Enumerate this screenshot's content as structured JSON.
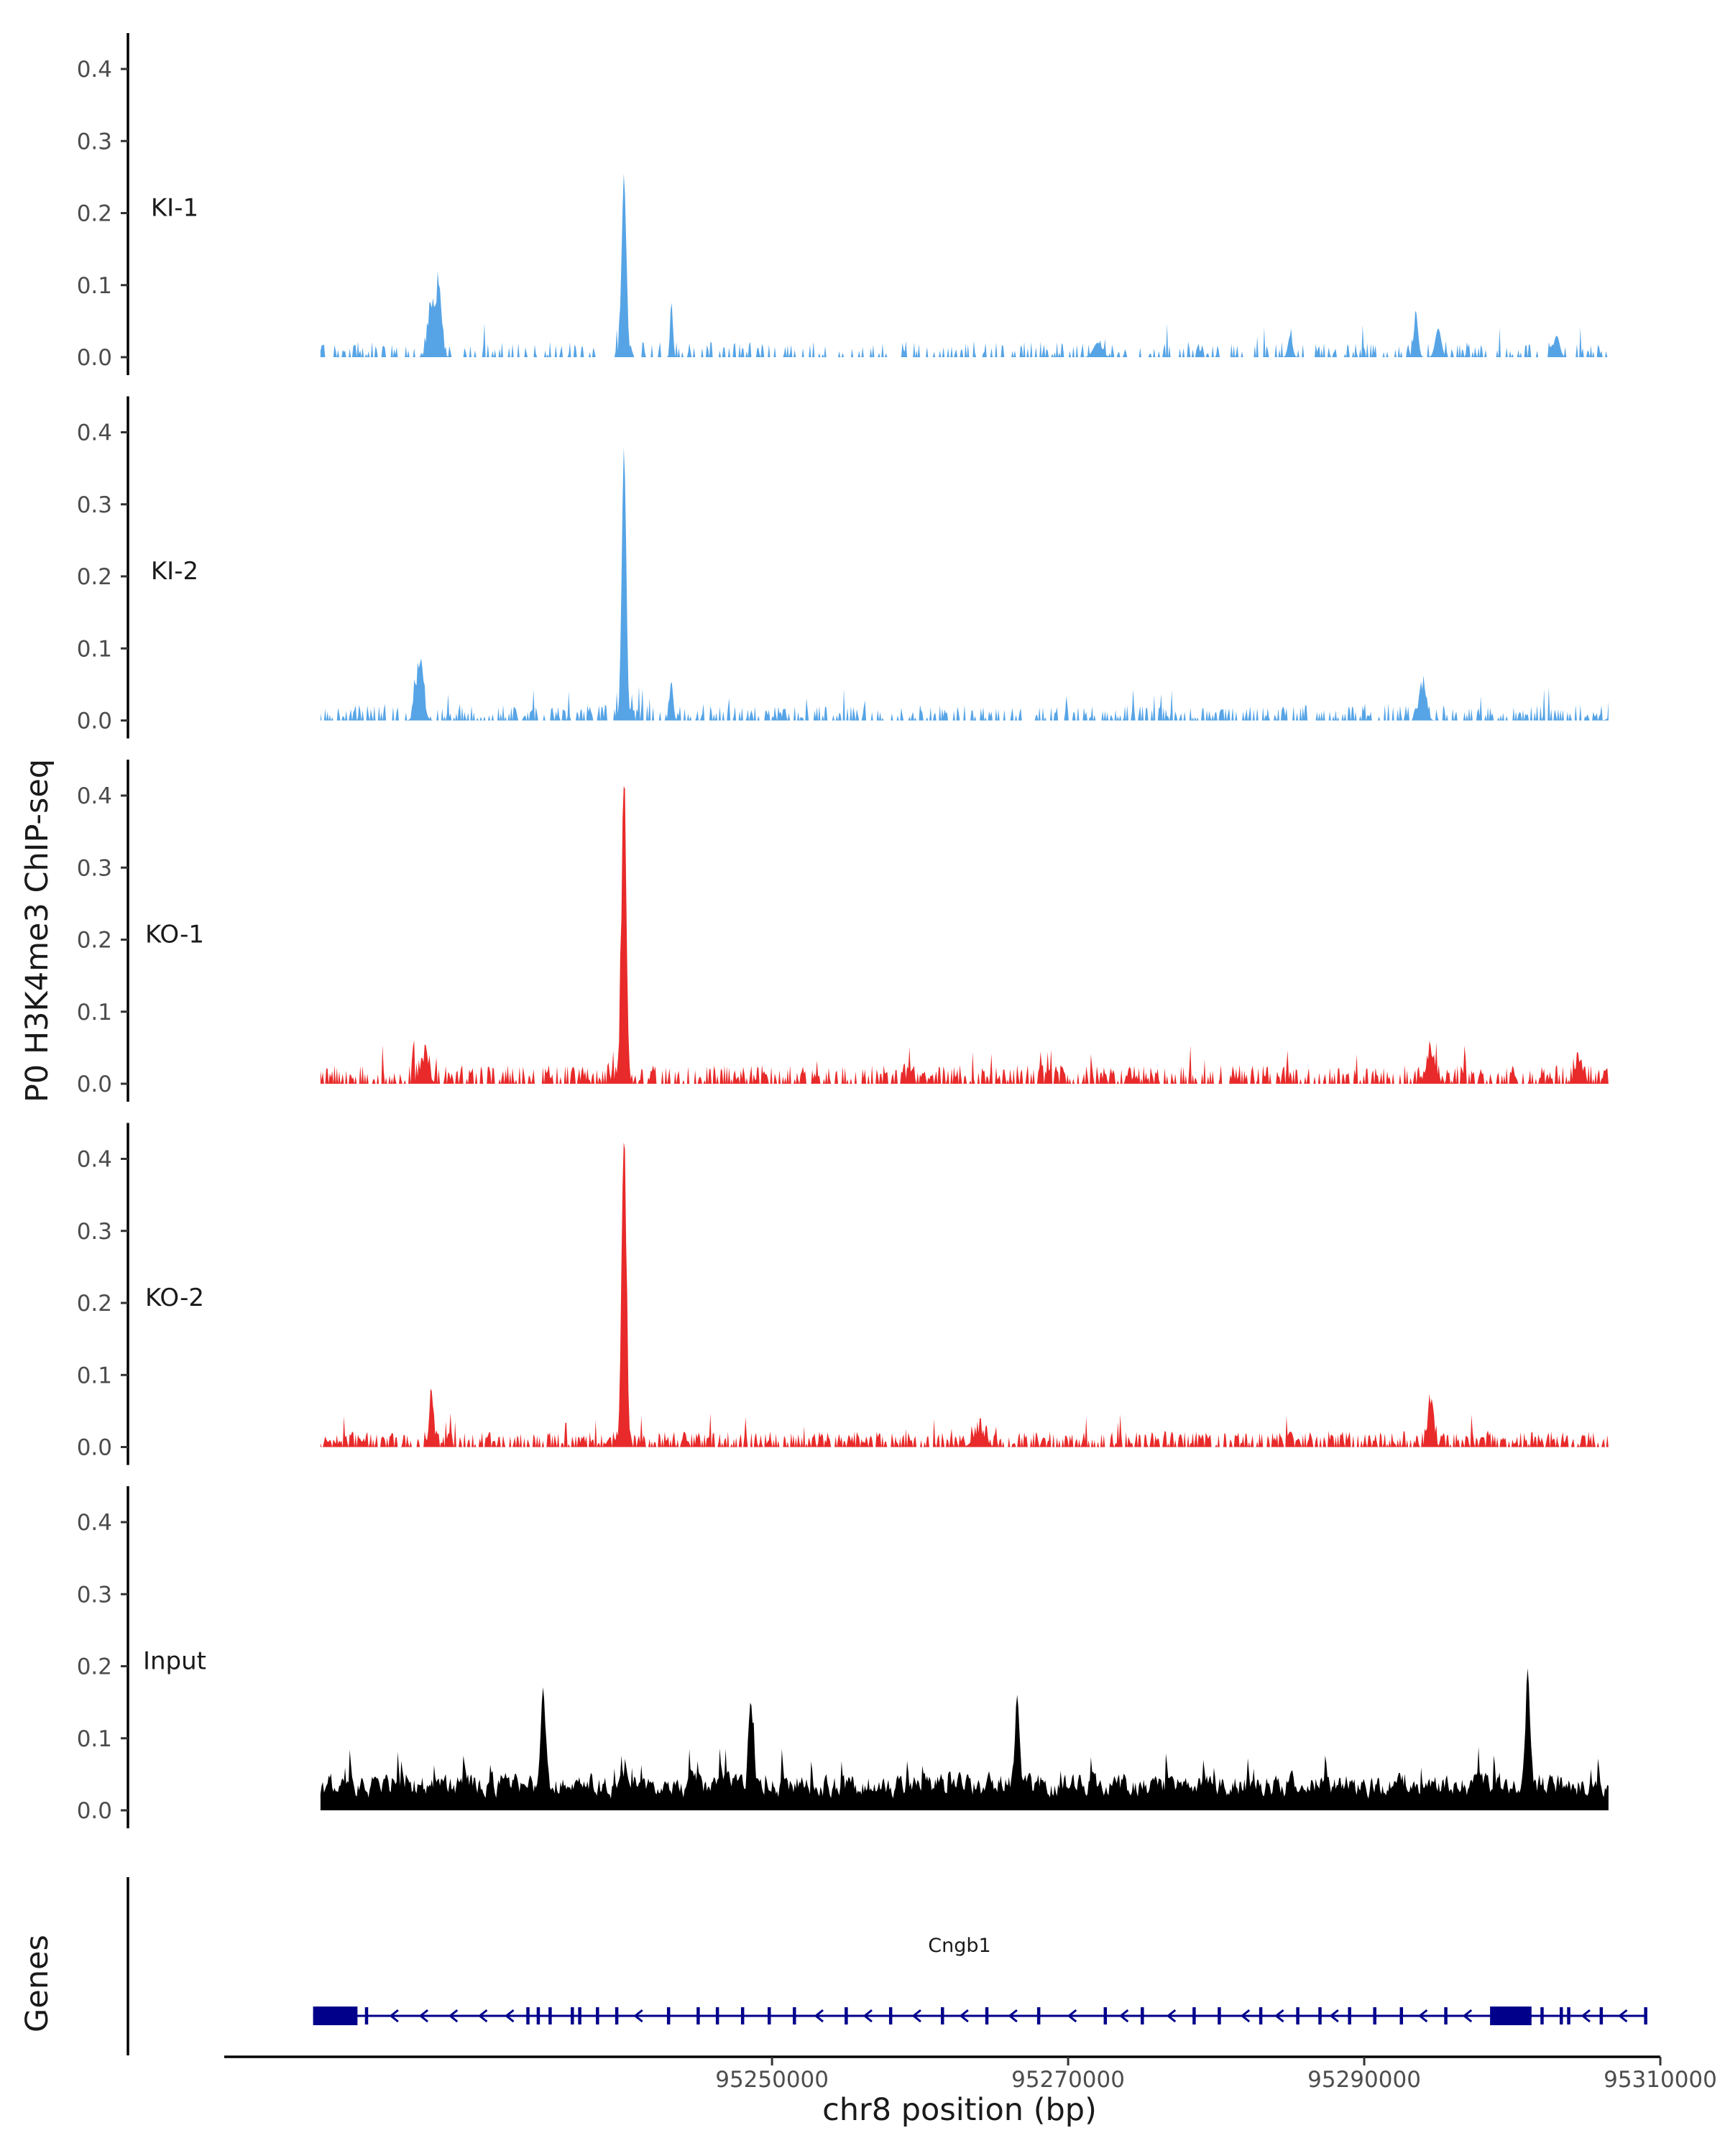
{
  "chart_data": {
    "type": "area",
    "ylabel": "P0 H3K4me3 ChIP-seq",
    "xlabel": "chr8 position (bp)",
    "genes_label": "Genes",
    "xlim": [
      95213000,
      95310000
    ],
    "x_ticks": [
      {
        "value": 95250000,
        "label": "95250000"
      },
      {
        "value": 95270000,
        "label": "95270000"
      },
      {
        "value": 95290000,
        "label": "95290000"
      },
      {
        "value": 95310000,
        "label": "95310000"
      }
    ],
    "ylim": [
      0,
      0.45
    ],
    "y_ticks": [
      {
        "value": 0.0,
        "label": "0.0"
      },
      {
        "value": 0.1,
        "label": "0.1"
      },
      {
        "value": 0.2,
        "label": "0.2"
      },
      {
        "value": 0.3,
        "label": "0.3"
      },
      {
        "value": 0.4,
        "label": "0.4"
      }
    ],
    "tracks": [
      {
        "name": "KI-1",
        "color": "#56a4e6",
        "noise_level": 0.018,
        "density": 0.32,
        "seed": 11,
        "peaks": [
          [
            95227000,
            0.065,
            250
          ],
          [
            95227500,
            0.07,
            200
          ],
          [
            95240000,
            0.245,
            160
          ],
          [
            95243200,
            0.08,
            80
          ],
          [
            95272000,
            0.02,
            300
          ],
          [
            95285000,
            0.03,
            150
          ],
          [
            95293500,
            0.055,
            150
          ],
          [
            95295000,
            0.04,
            200
          ],
          [
            95303000,
            0.03,
            200
          ]
        ]
      },
      {
        "name": "KI-2",
        "color": "#56a4e6",
        "noise_level": 0.018,
        "density": 0.45,
        "seed": 23,
        "peaks": [
          [
            95226200,
            0.07,
            250
          ],
          [
            95240000,
            0.37,
            150
          ],
          [
            95243200,
            0.055,
            120
          ],
          [
            95294000,
            0.045,
            220
          ],
          [
            95307000,
            0.02,
            300
          ]
        ]
      },
      {
        "name": "KO-1",
        "color": "#e82a2a",
        "noise_level": 0.022,
        "density": 0.55,
        "seed": 37,
        "peaks": [
          [
            95226500,
            0.03,
            300
          ],
          [
            95240000,
            0.415,
            160
          ],
          [
            95294500,
            0.04,
            300
          ],
          [
            95304500,
            0.03,
            250
          ]
        ]
      },
      {
        "name": "KO-2",
        "color": "#e82a2a",
        "noise_level": 0.018,
        "density": 0.6,
        "seed": 53,
        "peaks": [
          [
            95227000,
            0.07,
            150
          ],
          [
            95240000,
            0.425,
            160
          ],
          [
            95294500,
            0.06,
            200
          ],
          [
            95264000,
            0.02,
            400
          ]
        ]
      },
      {
        "name": "Input",
        "color": "#000000",
        "noise_level": 0.05,
        "density": 1.0,
        "seed": 71,
        "peaks": [
          [
            95234500,
            0.085,
            120
          ],
          [
            95248500,
            0.07,
            120
          ],
          [
            95266500,
            0.08,
            120
          ],
          [
            95301000,
            0.095,
            120
          ]
        ]
      }
    ],
    "gene": {
      "name": "Cngb1",
      "color": "#00008b",
      "start": 95219000,
      "end": 95309000,
      "thick_blocks": [
        [
          95219000,
          95222000
        ],
        [
          95298500,
          95301300
        ]
      ],
      "exons": [
        95222600,
        95233500,
        95234200,
        95235000,
        95236500,
        95237000,
        95238200,
        95239500,
        95243000,
        95245000,
        95246300,
        95248000,
        95249800,
        95251500,
        95255000,
        95258000,
        95261500,
        95264500,
        95268000,
        95272500,
        95275000,
        95278500,
        95280200,
        95283000,
        95285500,
        95287000,
        95289000,
        95290700,
        95292500,
        95295500,
        95302000,
        95303300,
        95303800,
        95306000,
        95309000
      ],
      "arrows": [
        95224500,
        95226500,
        95228500,
        95230500,
        95232300,
        95241000,
        95253200,
        95256500,
        95259800,
        95263000,
        95266300,
        95270300,
        95273800,
        95277000,
        95282000,
        95284300,
        95288000,
        95294000,
        95297000,
        95305000,
        95307500
      ]
    }
  }
}
